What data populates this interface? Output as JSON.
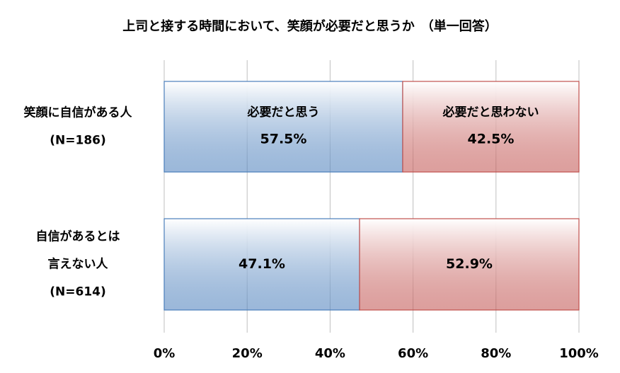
{
  "chart_data": {
    "type": "stacked-barh",
    "title": "上司と接する時間において、笑顔が必要だと思うか　（単一回答）",
    "categories": [
      [
        "笑顔に自信がある人",
        "(N=186)"
      ],
      [
        "自信があるとは",
        "言えない人",
        "(N=614)"
      ]
    ],
    "series": [
      {
        "name": "必要だと思う",
        "color": "#4a7ebb",
        "values": [
          57.5,
          47.1
        ],
        "value_labels": [
          "57.5%",
          "47.1%"
        ]
      },
      {
        "name": "必要だと思わない",
        "color": "#c0504d",
        "values": [
          42.5,
          52.9
        ],
        "value_labels": [
          "42.5%",
          "52.9%"
        ]
      }
    ],
    "xlim": [
      0,
      100
    ],
    "xticks": [
      {
        "value": 0,
        "label": "0%"
      },
      {
        "value": 20,
        "label": "20%"
      },
      {
        "value": 40,
        "label": "40%"
      },
      {
        "value": 60,
        "label": "60%"
      },
      {
        "value": 80,
        "label": "80%"
      },
      {
        "value": 100,
        "label": "100%"
      }
    ],
    "grid": true
  }
}
